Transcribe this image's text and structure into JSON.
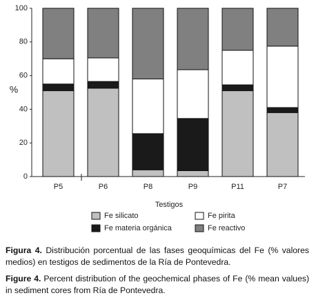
{
  "chart_data": {
    "type": "stacked-bar",
    "categories": [
      "P5",
      "P6",
      "P8",
      "P9",
      "P11",
      "P7"
    ],
    "series": [
      {
        "name": "Fe silicato",
        "color": "#c0c0c0",
        "values": [
          51,
          52.5,
          4,
          3.5,
          51,
          38
        ]
      },
      {
        "name": "Fe materia orgánica",
        "color": "#1a1a1a",
        "values": [
          4,
          4,
          21.5,
          31,
          3.5,
          3
        ]
      },
      {
        "name": "Fe pirita",
        "color": "#ffffff",
        "values": [
          15,
          14,
          32.5,
          29,
          20.5,
          36.5
        ]
      },
      {
        "name": "Fe reactivo",
        "color": "#808080",
        "values": [
          30,
          29.5,
          42,
          36.5,
          25,
          22.5
        ]
      }
    ],
    "y_label": "%",
    "x_label": "Testigos",
    "ylim": [
      0,
      100
    ],
    "yticks": [
      0,
      20,
      40,
      60,
      80,
      100
    ]
  },
  "caption": {
    "spanish": {
      "label": "Figura 4.",
      "text": "Distribución porcentual de las fases geoquímicas del Fe (% valores medios) en testigos de sedimentos de la Ría de Pontevedra."
    },
    "english": {
      "label": "Figure 4.",
      "text": "Percent distribution of the geochemical phases of Fe (% mean values) in sediment cores from Ría de Pontevedra."
    }
  }
}
